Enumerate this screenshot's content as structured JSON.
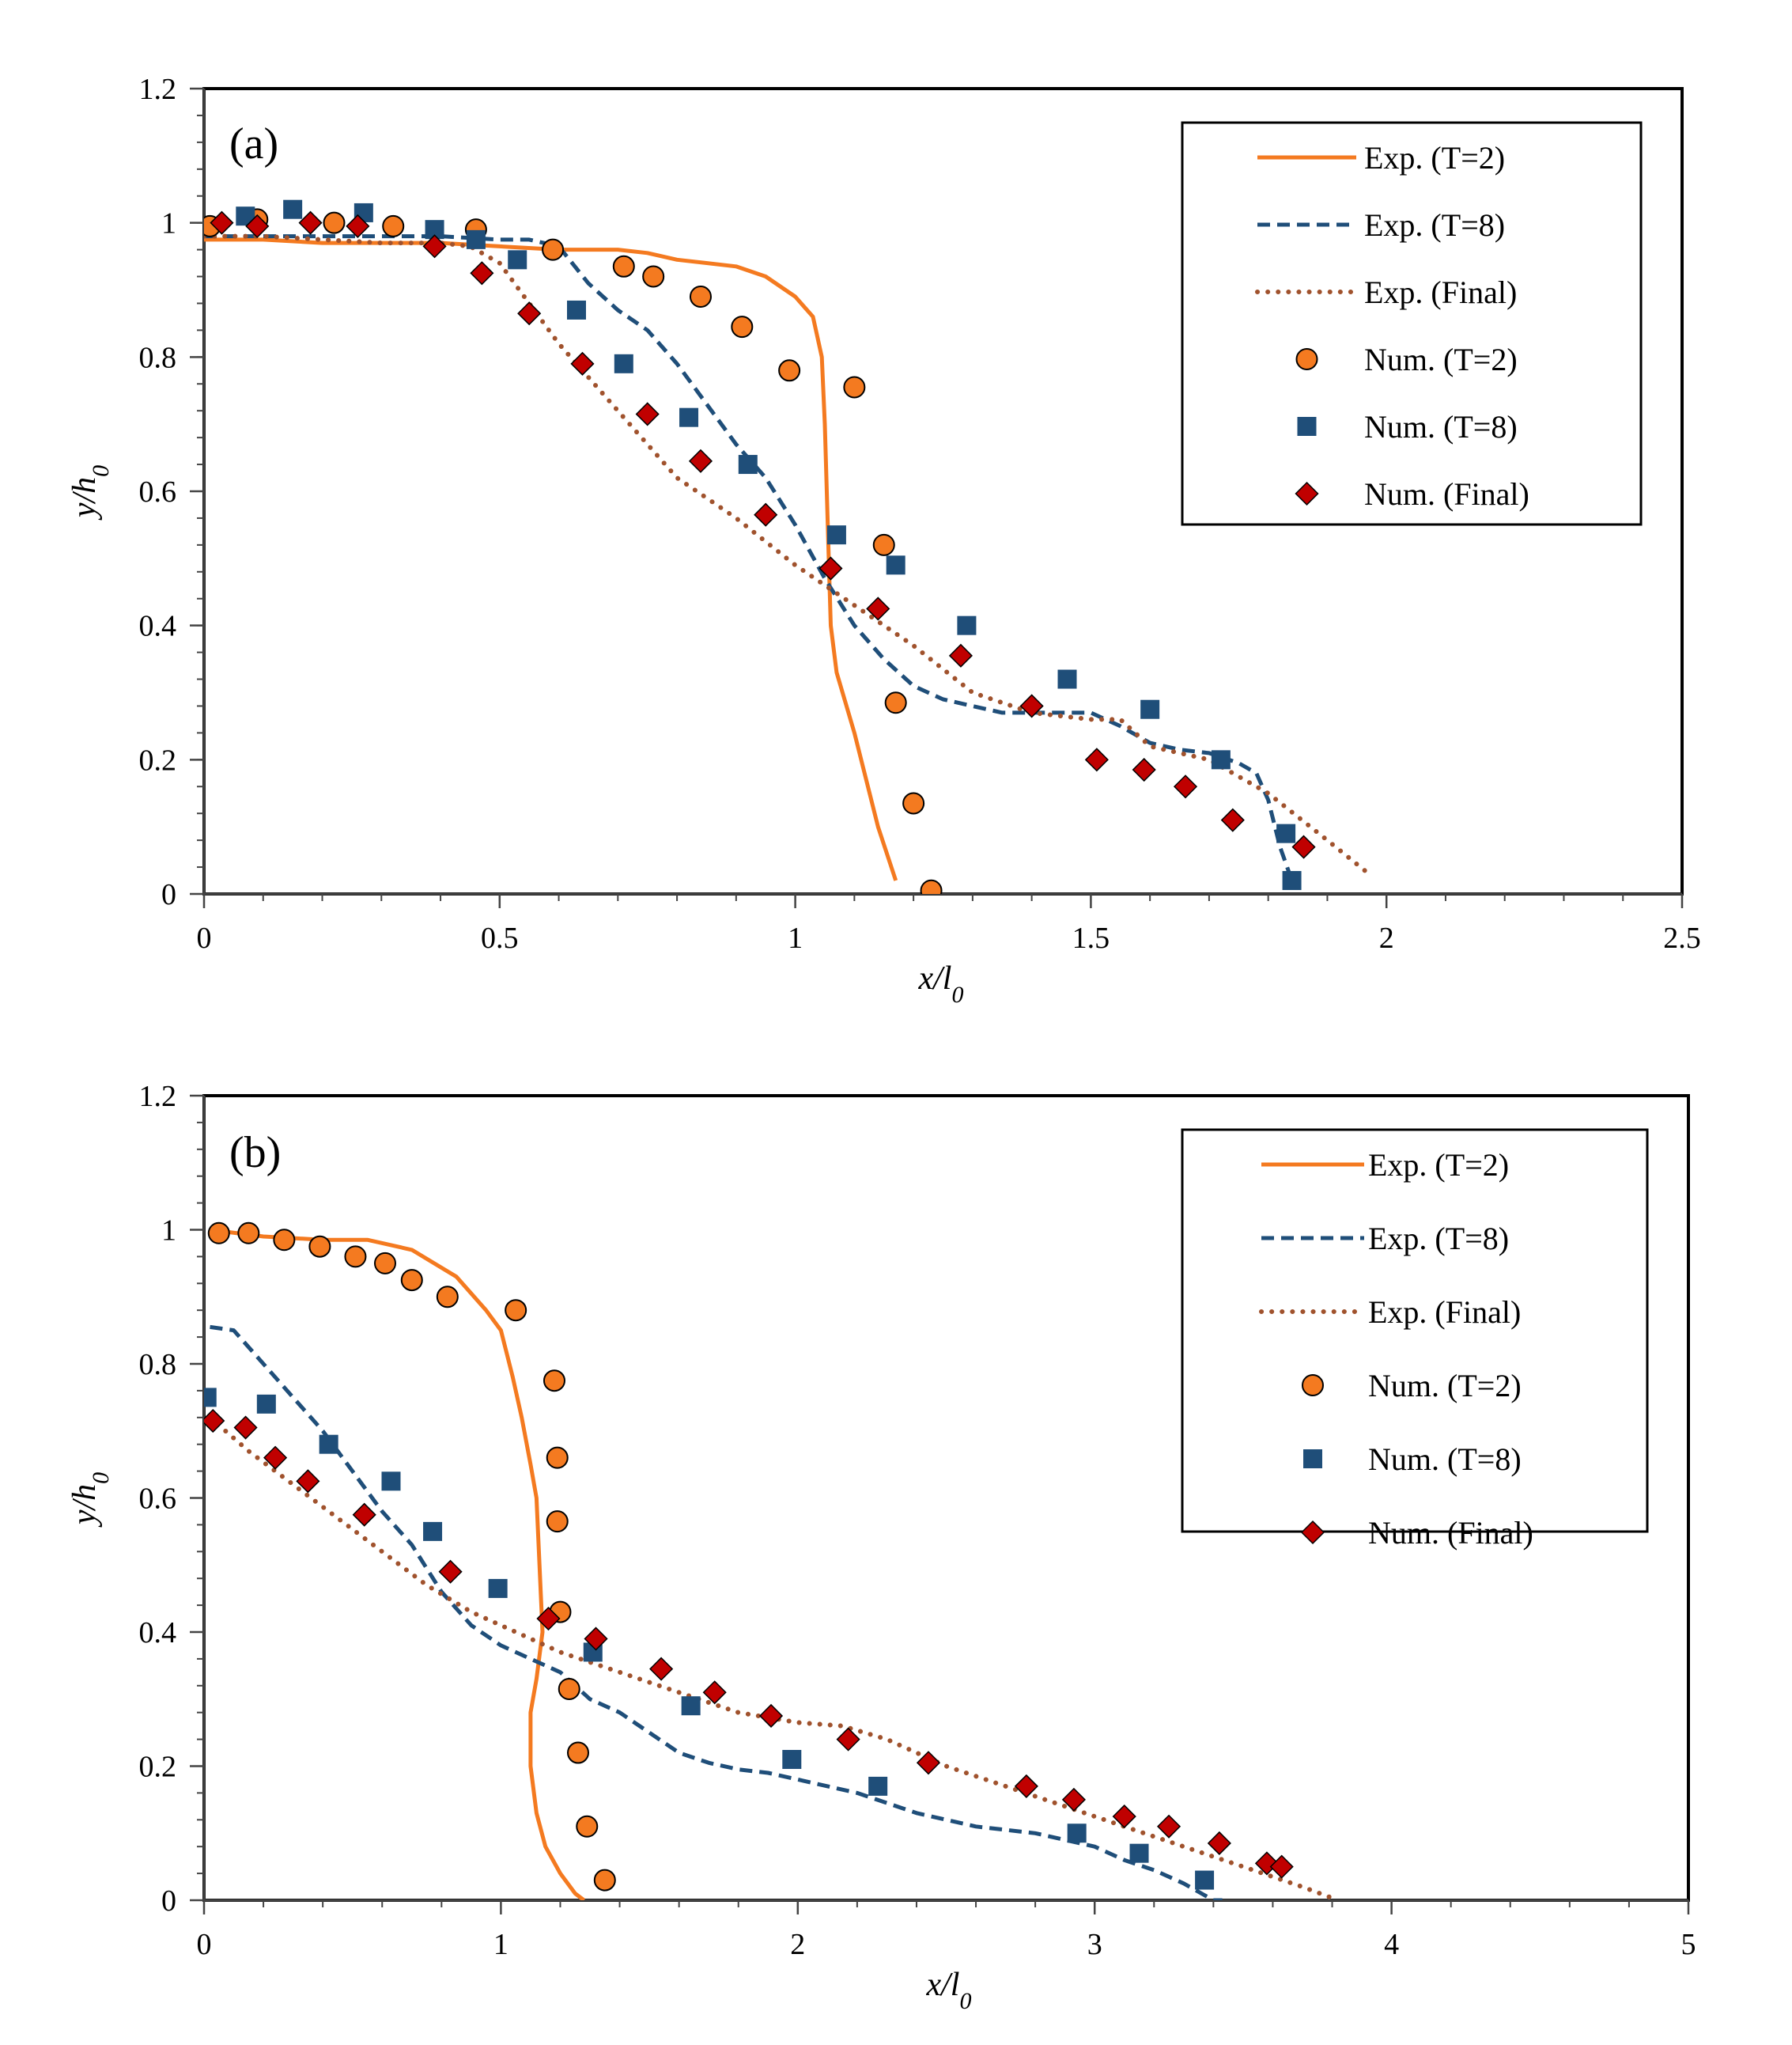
{
  "chart_data": [
    {
      "type": "line+scatter",
      "panel_label": "(a)",
      "xlabel": {
        "main": "x/l",
        "sub": "0"
      },
      "ylabel": {
        "main": "y/h",
        "sub": "0"
      },
      "xlim": [
        0,
        2.5
      ],
      "ylim": [
        0,
        1.2
      ],
      "x_ticks": [
        0,
        0.5,
        1,
        1.5,
        2,
        2.5
      ],
      "x_tick_labels": [
        "0",
        "0.5",
        "1",
        "1.5",
        "2",
        "2.5"
      ],
      "y_ticks": [
        0,
        0.2,
        0.4,
        0.6,
        0.8,
        1,
        1.2
      ],
      "y_tick_labels": [
        "0",
        "0.2",
        "0.4",
        "0.6",
        "0.8",
        "1",
        "1.2"
      ],
      "x_minor_step": 0.1,
      "y_minor_step": 0.04,
      "legend_position": "top-right",
      "series": [
        {
          "name": "Exp. (T=2)",
          "kind": "line",
          "style": "solid",
          "color": "#F47A20",
          "x": [
            0,
            0.1,
            0.2,
            0.3,
            0.4,
            0.5,
            0.6,
            0.7,
            0.75,
            0.8,
            0.9,
            0.95,
            1.0,
            1.03,
            1.045,
            1.05,
            1.055,
            1.06,
            1.07,
            1.1,
            1.14,
            1.17
          ],
          "y": [
            0.975,
            0.975,
            0.97,
            0.97,
            0.97,
            0.965,
            0.96,
            0.96,
            0.955,
            0.945,
            0.935,
            0.92,
            0.89,
            0.86,
            0.8,
            0.7,
            0.55,
            0.4,
            0.33,
            0.24,
            0.1,
            0.02
          ]
        },
        {
          "name": "Exp. (T=8)",
          "kind": "line",
          "style": "dashed",
          "color": "#1F4E79",
          "x": [
            0,
            0.1,
            0.2,
            0.3,
            0.4,
            0.5,
            0.55,
            0.6,
            0.65,
            0.7,
            0.75,
            0.8,
            0.85,
            0.9,
            0.95,
            1.0,
            1.05,
            1.1,
            1.15,
            1.2,
            1.25,
            1.3,
            1.35,
            1.4,
            1.45,
            1.5,
            1.55,
            1.6,
            1.65,
            1.7,
            1.75,
            1.78,
            1.8,
            1.82,
            1.84
          ],
          "y": [
            0.98,
            0.98,
            0.98,
            0.98,
            0.98,
            0.975,
            0.975,
            0.965,
            0.91,
            0.87,
            0.84,
            0.79,
            0.73,
            0.67,
            0.62,
            0.55,
            0.47,
            0.4,
            0.35,
            0.31,
            0.29,
            0.28,
            0.27,
            0.27,
            0.27,
            0.27,
            0.25,
            0.225,
            0.215,
            0.21,
            0.195,
            0.18,
            0.14,
            0.07,
            0.02
          ]
        },
        {
          "name": "Exp. (Final)",
          "kind": "line",
          "style": "dotted",
          "color": "#A0522D",
          "x": [
            0,
            0.1,
            0.2,
            0.3,
            0.4,
            0.45,
            0.5,
            0.55,
            0.6,
            0.7,
            0.8,
            0.9,
            1.0,
            1.1,
            1.2,
            1.3,
            1.4,
            1.5,
            1.55,
            1.6,
            1.7,
            1.8,
            1.9,
            1.97
          ],
          "y": [
            0.98,
            0.98,
            0.975,
            0.97,
            0.97,
            0.965,
            0.94,
            0.88,
            0.82,
            0.72,
            0.62,
            0.56,
            0.49,
            0.43,
            0.37,
            0.3,
            0.27,
            0.26,
            0.26,
            0.22,
            0.2,
            0.15,
            0.08,
            0.03
          ]
        },
        {
          "name": "Num. (T=2)",
          "kind": "scatter",
          "marker": "circle",
          "color": "#F47A20",
          "x": [
            0.01,
            0.09,
            0.22,
            0.32,
            0.46,
            0.59,
            0.71,
            0.76,
            0.84,
            0.91,
            0.99,
            1.1,
            1.15,
            1.17,
            1.2,
            1.23
          ],
          "y": [
            0.995,
            1.005,
            1.0,
            0.995,
            0.99,
            0.96,
            0.935,
            0.92,
            0.89,
            0.845,
            0.78,
            0.755,
            0.52,
            0.285,
            0.135,
            0.005
          ]
        },
        {
          "name": "Num. (T=8)",
          "kind": "scatter",
          "marker": "square",
          "color": "#1F4E79",
          "x": [
            0.07,
            0.15,
            0.27,
            0.39,
            0.46,
            0.53,
            0.63,
            0.71,
            0.82,
            0.92,
            1.07,
            1.17,
            1.29,
            1.46,
            1.6,
            1.72,
            1.83,
            1.84
          ],
          "y": [
            1.01,
            1.02,
            1.015,
            0.99,
            0.975,
            0.945,
            0.87,
            0.79,
            0.71,
            0.64,
            0.535,
            0.49,
            0.4,
            0.32,
            0.275,
            0.2,
            0.09,
            0.02
          ]
        },
        {
          "name": "Num. (Final)",
          "kind": "scatter",
          "marker": "diamond",
          "color": "#C00000",
          "x": [
            0.03,
            0.09,
            0.18,
            0.26,
            0.39,
            0.47,
            0.55,
            0.64,
            0.75,
            0.84,
            0.95,
            1.06,
            1.14,
            1.28,
            1.4,
            1.51,
            1.59,
            1.66,
            1.74,
            1.86
          ],
          "y": [
            1.0,
            0.995,
            1.0,
            0.995,
            0.965,
            0.925,
            0.865,
            0.79,
            0.715,
            0.645,
            0.565,
            0.485,
            0.425,
            0.355,
            0.28,
            0.2,
            0.185,
            0.16,
            0.11,
            0.07
          ]
        }
      ]
    },
    {
      "type": "line+scatter",
      "panel_label": "(b)",
      "xlabel": {
        "main": "x/l",
        "sub": "0"
      },
      "ylabel": {
        "main": "y/h",
        "sub": "0"
      },
      "xlim": [
        0,
        5
      ],
      "ylim": [
        0,
        1.2
      ],
      "x_ticks": [
        0,
        1,
        2,
        3,
        4,
        5
      ],
      "x_tick_labels": [
        "0",
        "1",
        "2",
        "3",
        "4",
        "5"
      ],
      "y_ticks": [
        0,
        0.2,
        0.4,
        0.6,
        0.8,
        1,
        1.2
      ],
      "y_tick_labels": [
        "0",
        "0.2",
        "0.4",
        "0.6",
        "0.8",
        "1",
        "1.2"
      ],
      "x_minor_step": 0.2,
      "y_minor_step": 0.04,
      "legend_position": "top-right",
      "series": [
        {
          "name": "Exp. (T=2)",
          "kind": "line",
          "style": "solid",
          "color": "#F47A20",
          "x": [
            0.02,
            0.2,
            0.4,
            0.55,
            0.7,
            0.85,
            0.95,
            1.0,
            1.04,
            1.07,
            1.1,
            1.12,
            1.13,
            1.14,
            1.12,
            1.1,
            1.1,
            1.12,
            1.15,
            1.2,
            1.25,
            1.28
          ],
          "y": [
            1.0,
            0.99,
            0.985,
            0.985,
            0.97,
            0.93,
            0.88,
            0.85,
            0.78,
            0.72,
            0.65,
            0.6,
            0.5,
            0.4,
            0.33,
            0.28,
            0.2,
            0.13,
            0.08,
            0.04,
            0.01,
            0.0
          ]
        },
        {
          "name": "Exp. (T=8)",
          "kind": "line",
          "style": "dashed",
          "color": "#1F4E79",
          "x": [
            0.02,
            0.1,
            0.2,
            0.3,
            0.4,
            0.5,
            0.6,
            0.7,
            0.8,
            0.9,
            1.0,
            1.1,
            1.2,
            1.3,
            1.4,
            1.5,
            1.6,
            1.7,
            1.8,
            1.9,
            2.0,
            2.2,
            2.4,
            2.6,
            2.8,
            2.9,
            3.0,
            3.1,
            3.2,
            3.3,
            3.4,
            3.43
          ],
          "y": [
            0.855,
            0.85,
            0.8,
            0.75,
            0.7,
            0.64,
            0.58,
            0.53,
            0.46,
            0.41,
            0.38,
            0.36,
            0.34,
            0.3,
            0.28,
            0.25,
            0.22,
            0.205,
            0.195,
            0.19,
            0.18,
            0.16,
            0.13,
            0.11,
            0.1,
            0.09,
            0.08,
            0.06,
            0.045,
            0.025,
            0.0,
            0.0
          ]
        },
        {
          "name": "Exp. (Final)",
          "kind": "line",
          "style": "dotted",
          "color": "#A0522D",
          "x": [
            0.02,
            0.15,
            0.3,
            0.45,
            0.6,
            0.75,
            0.9,
            1.05,
            1.2,
            1.4,
            1.6,
            1.8,
            2.0,
            2.15,
            2.3,
            2.5,
            2.7,
            2.9,
            3.1,
            3.3,
            3.5,
            3.7,
            3.82
          ],
          "y": [
            0.72,
            0.67,
            0.62,
            0.57,
            0.52,
            0.47,
            0.43,
            0.4,
            0.37,
            0.34,
            0.31,
            0.28,
            0.265,
            0.26,
            0.24,
            0.2,
            0.17,
            0.14,
            0.11,
            0.08,
            0.05,
            0.02,
            0.0
          ]
        },
        {
          "name": "Num. (T=2)",
          "kind": "scatter",
          "marker": "circle",
          "color": "#F47A20",
          "x": [
            0.05,
            0.15,
            0.27,
            0.39,
            0.51,
            0.61,
            0.7,
            0.82,
            1.05,
            1.18,
            1.19,
            1.19,
            1.2,
            1.23,
            1.26,
            1.29,
            1.35
          ],
          "y": [
            0.995,
            0.995,
            0.985,
            0.975,
            0.96,
            0.95,
            0.925,
            0.9,
            0.88,
            0.775,
            0.66,
            0.565,
            0.43,
            0.315,
            0.22,
            0.11,
            0.03
          ]
        },
        {
          "name": "Num. (T=8)",
          "kind": "scatter",
          "marker": "square",
          "color": "#1F4E79",
          "x": [
            0.01,
            0.21,
            0.42,
            0.63,
            0.77,
            0.99,
            1.31,
            1.64,
            1.98,
            2.27,
            2.94,
            3.15,
            3.37
          ],
          "y": [
            0.75,
            0.74,
            0.68,
            0.625,
            0.55,
            0.465,
            0.37,
            0.29,
            0.21,
            0.17,
            0.1,
            0.07,
            0.03
          ]
        },
        {
          "name": "Num. (Final)",
          "kind": "scatter",
          "marker": "diamond",
          "color": "#C00000",
          "x": [
            0.03,
            0.14,
            0.24,
            0.35,
            0.54,
            0.83,
            1.16,
            1.32,
            1.54,
            1.72,
            1.91,
            2.17,
            2.44,
            2.77,
            2.93,
            3.1,
            3.25,
            3.42,
            3.58,
            3.63
          ],
          "y": [
            0.715,
            0.705,
            0.66,
            0.625,
            0.575,
            0.49,
            0.42,
            0.39,
            0.345,
            0.31,
            0.275,
            0.24,
            0.205,
            0.17,
            0.15,
            0.125,
            0.11,
            0.085,
            0.055,
            0.05
          ]
        }
      ]
    }
  ]
}
